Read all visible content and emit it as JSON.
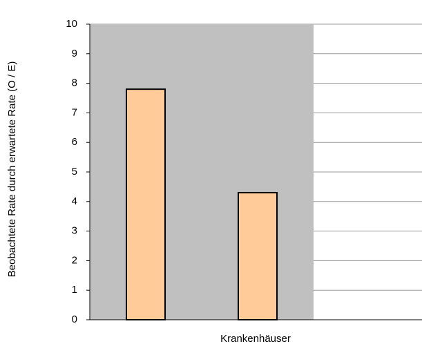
{
  "chart_data": {
    "type": "bar",
    "x_label": "Krankenhäuser",
    "y_label": "Beobachtete Rate durch erwartete Rate (O / E)",
    "categories": [
      null,
      null
    ],
    "values": [
      7.8,
      4.3
    ],
    "color": "#ffcc99",
    "ylim": [
      0,
      10
    ],
    "yticks": [
      0,
      1,
      2,
      3,
      4,
      5,
      6,
      7,
      8,
      9,
      10
    ],
    "grid": true
  }
}
